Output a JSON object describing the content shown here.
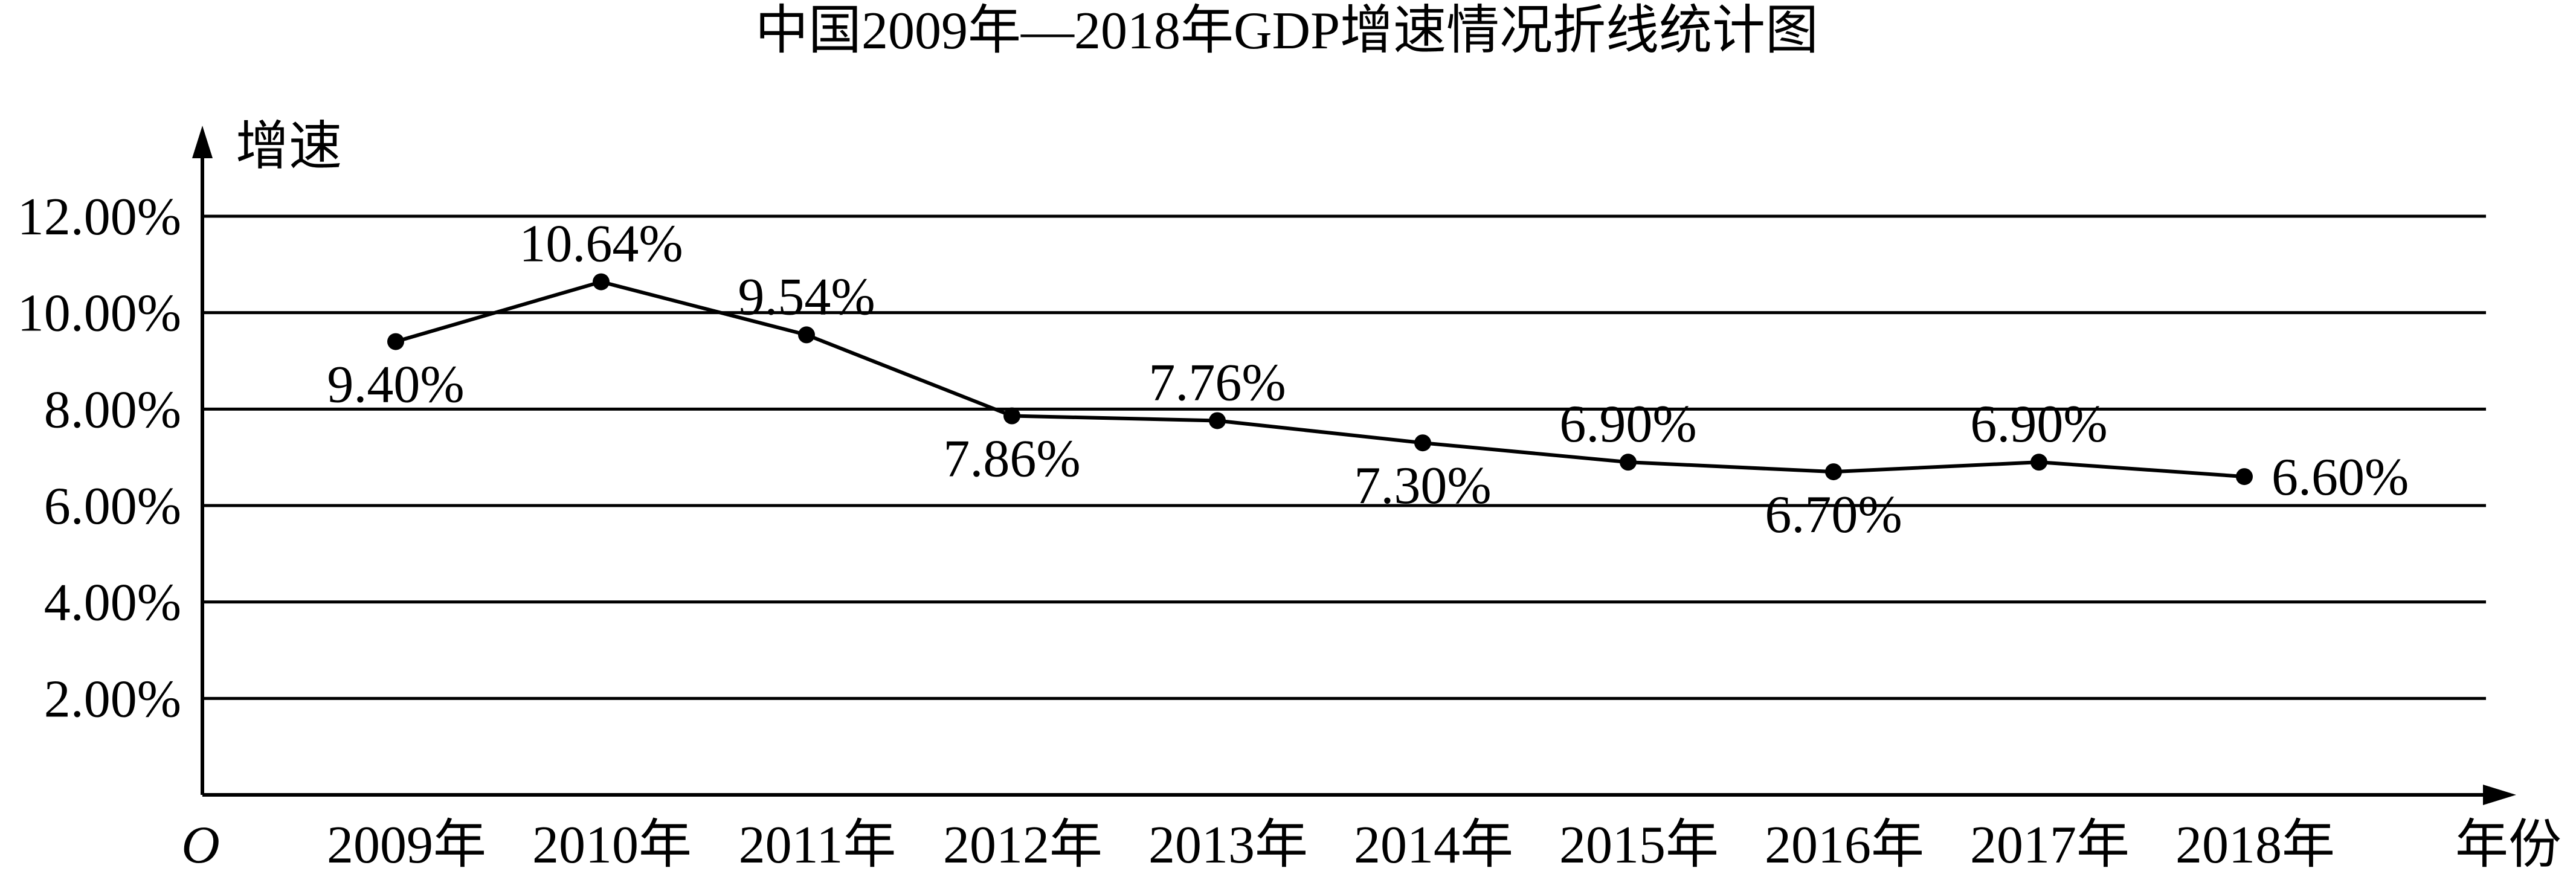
{
  "chart_data": {
    "type": "line",
    "title": "中国2009年—2018年GDP增速情况折线统计图",
    "ylabel": "增速",
    "xlabel": "年份",
    "origin_label": "O",
    "categories": [
      "2009年",
      "2010年",
      "2011年",
      "2012年",
      "2013年",
      "2014年",
      "2015年",
      "2016年",
      "2017年",
      "2018年"
    ],
    "values": [
      9.4,
      10.64,
      9.54,
      7.86,
      7.76,
      7.3,
      6.9,
      6.7,
      6.9,
      6.6
    ],
    "point_labels": [
      "9.40%",
      "10.64%",
      "9.54%",
      "7.86%",
      "7.76%",
      "7.30%",
      "6.90%",
      "6.70%",
      "6.90%",
      "6.60%"
    ],
    "yticks": [
      2,
      4,
      6,
      8,
      10,
      12
    ],
    "ytick_labels": [
      "2.00%",
      "4.00%",
      "6.00%",
      "8.00%",
      "10.00%",
      "12.00%"
    ],
    "ylim": [
      0,
      12
    ],
    "grid": true,
    "legend": "none",
    "colors": {
      "line": "#000000",
      "grid": "#000000",
      "background": "#ffffff"
    }
  }
}
